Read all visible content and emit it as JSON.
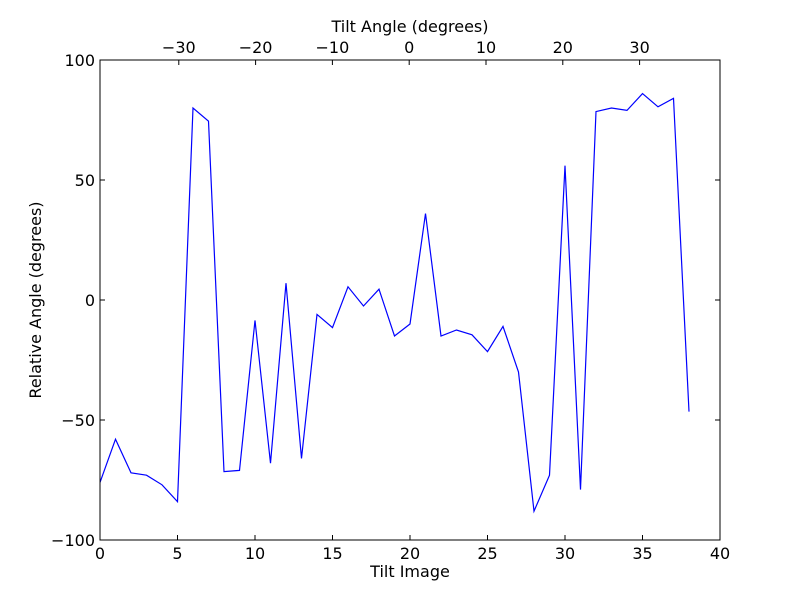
{
  "chart_data": {
    "type": "line",
    "xlabel": "Tilt Image",
    "ylabel": "Relative Angle (degrees)",
    "top_xlabel": "Tilt Angle (degrees)",
    "xlim": [
      0,
      40
    ],
    "ylim": [
      -100,
      100
    ],
    "xticks": [
      0,
      5,
      10,
      15,
      20,
      25,
      30,
      35,
      40
    ],
    "yticks": [
      -100,
      -50,
      0,
      50,
      100
    ],
    "top_xticks": [
      -30,
      -20,
      -10,
      0,
      10,
      20,
      30
    ],
    "top_xlim": [
      -40.26,
      40.47
    ],
    "tick_labels": {
      "x": [
        "0",
        "5",
        "10",
        "15",
        "20",
        "25",
        "30",
        "35",
        "40"
      ],
      "y": [
        "−100",
        "−50",
        "0",
        "50",
        "100"
      ],
      "top_x": [
        "−30",
        "−20",
        "−10",
        "0",
        "10",
        "20",
        "30"
      ]
    },
    "grid": false,
    "line_color": "#0000ff",
    "series": [
      {
        "x": [
          0,
          1,
          2,
          3,
          4,
          5,
          6,
          7,
          8,
          9,
          10,
          11,
          12,
          13,
          14,
          15,
          16,
          17,
          18,
          19,
          20,
          21,
          22,
          23,
          24,
          25,
          26,
          27,
          28,
          29,
          30,
          31,
          32,
          33,
          34,
          35,
          36,
          37,
          38
        ],
        "values": [
          -76,
          -58,
          -72,
          -73,
          -77,
          -84,
          80,
          74.5,
          -71.5,
          -71,
          -8.5,
          -68,
          7,
          -66,
          -6,
          -11.5,
          5.5,
          -2.5,
          4.5,
          -15,
          -10,
          36,
          -15,
          -12.5,
          -14.5,
          -21.5,
          -11,
          -30,
          -88,
          -73,
          56,
          -79,
          78.5,
          80,
          79,
          86,
          80.5,
          84,
          -46.5
        ]
      }
    ]
  }
}
